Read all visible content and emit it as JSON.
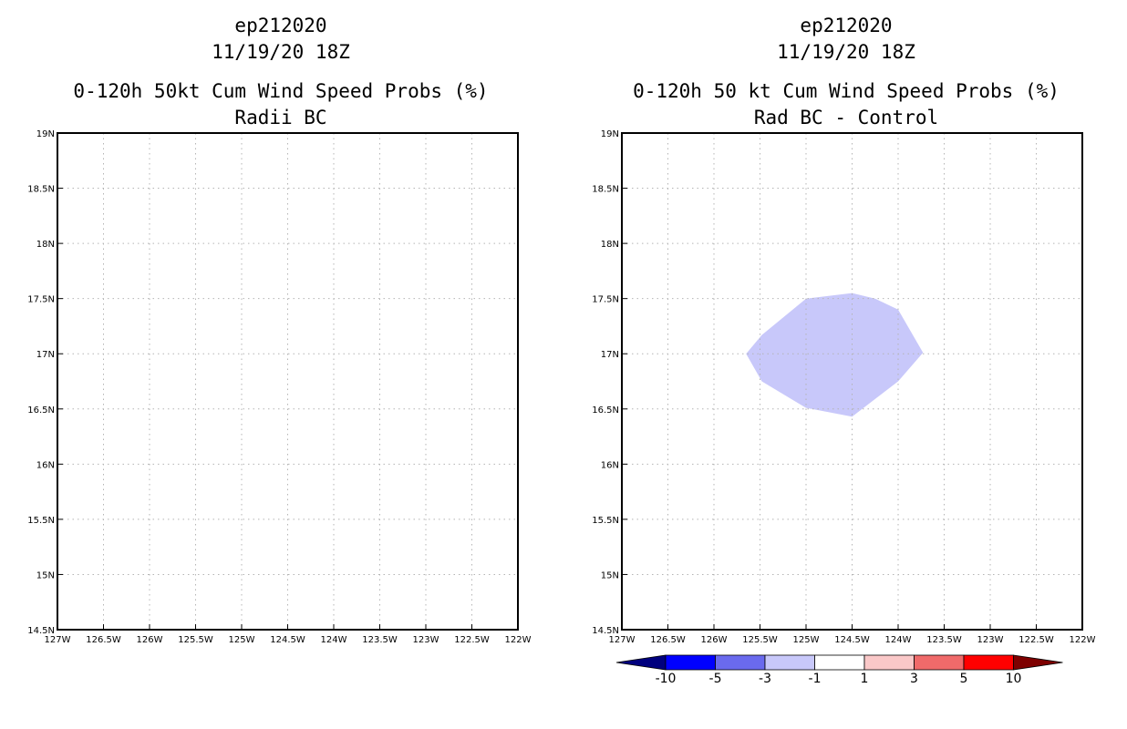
{
  "left_panel": {
    "title_line1": "ep212020",
    "title_line2": "11/19/20 18Z",
    "title_line3": "0-120h 50kt Cum Wind Speed Probs (%)",
    "title_line4": "Radii BC"
  },
  "right_panel": {
    "title_line1": "ep212020",
    "title_line2": "11/19/20 18Z",
    "title_line3": "0-120h 50 kt Cum Wind Speed Probs (%)",
    "title_line4": "Rad BC - Control"
  },
  "chart_data": [
    {
      "type": "heatmap",
      "title": "0-120h 50kt Cum Wind Speed Probs (%)",
      "subtitle": "Radii BC",
      "xlim": [
        -127,
        -122
      ],
      "ylim": [
        14.5,
        19
      ],
      "x_ticks": [
        "127W",
        "126.5W",
        "126W",
        "125.5W",
        "125W",
        "124.5W",
        "124W",
        "123.5W",
        "123W",
        "122.5W",
        "122W"
      ],
      "y_ticks": [
        "14.5N",
        "15N",
        "15.5N",
        "16N",
        "16.5N",
        "17N",
        "17.5N",
        "18N",
        "18.5N",
        "19N"
      ],
      "grid": true,
      "contours": []
    },
    {
      "type": "heatmap",
      "title": "0-120h 50 kt Cum Wind Speed Probs (%)",
      "subtitle": "Rad BC - Control",
      "xlim": [
        -127,
        -122
      ],
      "ylim": [
        14.5,
        19
      ],
      "x_ticks": [
        "127W",
        "126.5W",
        "126W",
        "125.5W",
        "125W",
        "124.5W",
        "124W",
        "123.5W",
        "123W",
        "122.5W",
        "122W"
      ],
      "y_ticks": [
        "14.5N",
        "15N",
        "15.5N",
        "16N",
        "16.5N",
        "17N",
        "17.5N",
        "18N",
        "18.5N",
        "19N"
      ],
      "grid": true,
      "contours": [
        {
          "level_range": [
            -3,
            -1
          ],
          "color": "#c8c8fa",
          "points": [
            [
              -125.65,
              17.0
            ],
            [
              -125.48,
              17.17
            ],
            [
              -125.0,
              17.5
            ],
            [
              -124.5,
              17.55
            ],
            [
              -124.25,
              17.5
            ],
            [
              -124.0,
              17.4
            ],
            [
              -123.73,
              17.01
            ],
            [
              -124.0,
              16.75
            ],
            [
              -124.5,
              16.43
            ],
            [
              -125.0,
              16.51
            ],
            [
              -125.48,
              16.75
            ]
          ]
        }
      ],
      "colorbar": {
        "labels": [
          "-10",
          "-5",
          "-3",
          "-1",
          "1",
          "3",
          "5",
          "10"
        ],
        "colors": [
          "#00007e",
          "#0000ff",
          "#6a6aee",
          "#c8c8fa",
          "#ffffff",
          "#fac8c8",
          "#f06a6a",
          "#ff0000",
          "#7e0000"
        ]
      }
    }
  ]
}
